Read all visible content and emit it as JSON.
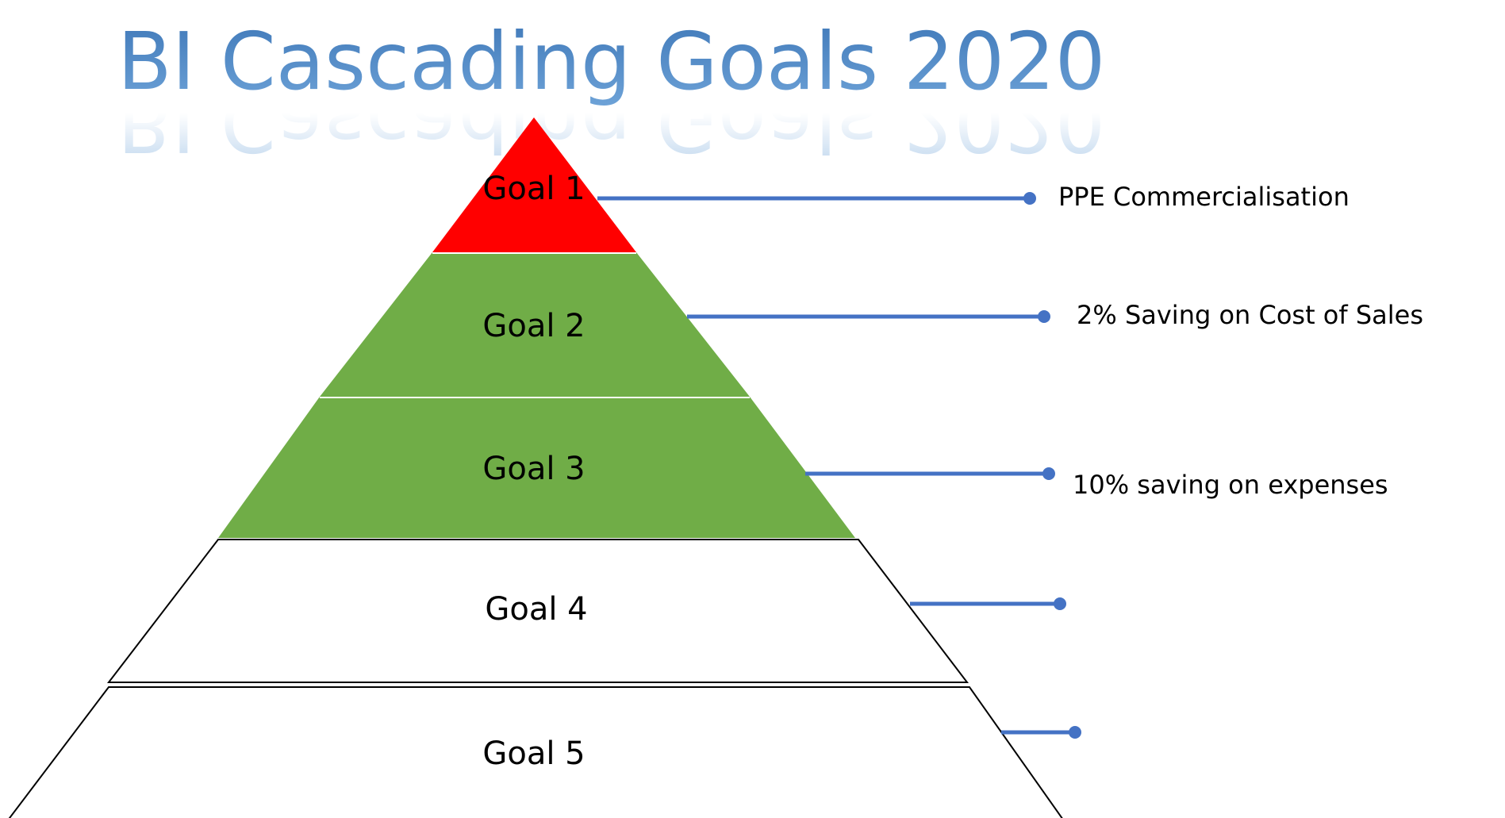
{
  "slide": {
    "title": "BI Cascading Goals 2020",
    "title_color": "#4f86c6"
  },
  "pyramid": {
    "levels": [
      {
        "label": "Goal 1",
        "fill": "#ff0000",
        "target": "PPE Commercialisation"
      },
      {
        "label": "Goal 2",
        "fill": "#70ad47",
        "target": "2% Saving on Cost of Sales"
      },
      {
        "label": "Goal 3",
        "fill": "#70ad47",
        "target": "10% saving on expenses"
      },
      {
        "label": "Goal 4",
        "fill": "#ffffff",
        "target": ""
      },
      {
        "label": "Goal 5",
        "fill": "#ffffff",
        "target": ""
      }
    ],
    "connector_color": "#4472c4"
  }
}
